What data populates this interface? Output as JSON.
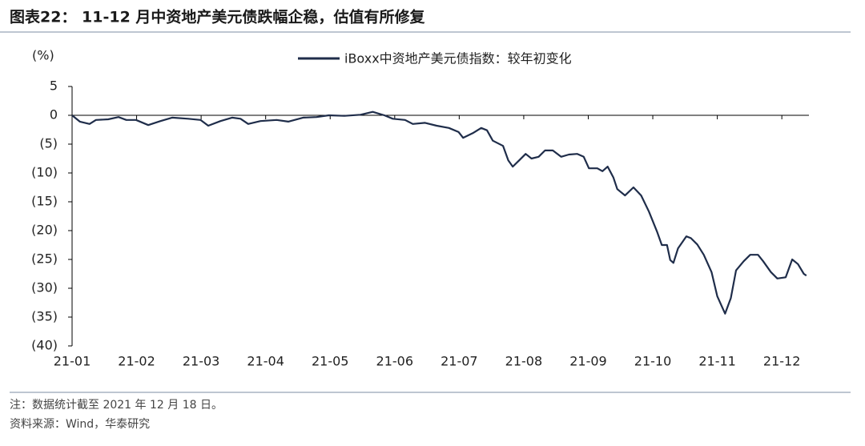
{
  "chart_data": {
    "type": "line",
    "title": "图表22：  11-12 月中资地产美元债跌幅企稳，估值有所修复",
    "y_label": "(%)",
    "note": "注：数据统计截至 2021 年 12 月 18 日。",
    "source": "资料来源：Wind，华泰研究",
    "x": [
      0,
      0.12,
      0.27,
      0.37,
      0.56,
      0.72,
      0.84,
      0.99,
      1.18,
      1.37,
      1.55,
      1.8,
      1.99,
      2.11,
      2.3,
      2.48,
      2.61,
      2.73,
      2.92,
      3.17,
      3.35,
      3.58,
      3.79,
      3.98,
      4.22,
      4.47,
      4.66,
      4.84,
      4.97,
      5.16,
      5.28,
      5.47,
      5.65,
      5.84,
      5.99,
      6.06,
      6.21,
      6.34,
      6.43,
      6.52,
      6.68,
      6.76,
      6.83,
      6.93,
      7.03,
      7.12,
      7.23,
      7.33,
      7.45,
      7.58,
      7.7,
      7.83,
      7.93,
      8.01,
      8.14,
      8.22,
      8.3,
      8.39,
      8.45,
      8.57,
      8.7,
      8.82,
      8.94,
      9.07,
      9.14,
      9.22,
      9.27,
      9.32,
      9.39,
      9.52,
      9.59,
      9.69,
      9.79,
      9.91,
      10.0,
      10.12,
      10.21,
      10.29,
      10.41,
      10.51,
      10.63,
      10.71,
      10.83,
      10.93,
      11.06,
      11.16,
      11.25,
      11.34,
      11.38
    ],
    "series": [
      {
        "name": "iBoxx中资地产美元债指数：较年初变化",
        "color": "#1f2d4a",
        "values": [
          0,
          -1.1,
          -1.5,
          -0.8,
          -0.7,
          -0.3,
          -0.8,
          -0.8,
          -1.7,
          -1.0,
          -0.4,
          -0.6,
          -0.8,
          -1.8,
          -1.0,
          -0.4,
          -0.6,
          -1.5,
          -1.0,
          -0.8,
          -1.1,
          -0.4,
          -0.3,
          0,
          -0.1,
          0.1,
          0.6,
          0,
          -0.6,
          -0.8,
          -1.5,
          -1.3,
          -1.8,
          -2.2,
          -2.9,
          -3.9,
          -3.1,
          -2.2,
          -2.6,
          -4.4,
          -5.3,
          -7.8,
          -8.9,
          -7.8,
          -6.7,
          -7.5,
          -7.2,
          -6.1,
          -6.1,
          -7.2,
          -6.8,
          -6.7,
          -7.2,
          -9.2,
          -9.2,
          -9.7,
          -8.9,
          -10.8,
          -12.8,
          -13.9,
          -12.5,
          -13.9,
          -16.7,
          -20.3,
          -22.5,
          -22.5,
          -25.1,
          -25.6,
          -23.1,
          -21.0,
          -21.3,
          -22.4,
          -24.2,
          -27.2,
          -31.4,
          -34.4,
          -31.7,
          -26.9,
          -25.3,
          -24.2,
          -24.2,
          -25.3,
          -27.2,
          -28.3,
          -28.1,
          -25.0,
          -25.8,
          -27.5,
          -27.8
        ]
      }
    ],
    "xlim": [
      0,
      11.42
    ],
    "xticks": [
      {
        "value": 0,
        "label": "21-01"
      },
      {
        "value": 1,
        "label": "21-02"
      },
      {
        "value": 2,
        "label": "21-03"
      },
      {
        "value": 3,
        "label": "21-04"
      },
      {
        "value": 4,
        "label": "21-05"
      },
      {
        "value": 5,
        "label": "21-06"
      },
      {
        "value": 6,
        "label": "21-07"
      },
      {
        "value": 7,
        "label": "21-08"
      },
      {
        "value": 8,
        "label": "21-09"
      },
      {
        "value": 9,
        "label": "21-10"
      },
      {
        "value": 10,
        "label": "21-11"
      },
      {
        "value": 11,
        "label": "21-12"
      }
    ],
    "ylim": [
      -40,
      5
    ],
    "yticks": [
      5,
      0,
      {
        "value": -5,
        "label": "(5)"
      },
      {
        "value": -10,
        "label": "(10)"
      },
      {
        "value": -15,
        "label": "(15)"
      },
      {
        "value": -20,
        "label": "(20)"
      },
      {
        "value": -25,
        "label": "(25)"
      },
      {
        "value": -30,
        "label": "(30)"
      },
      {
        "value": -35,
        "label": "(35)"
      },
      {
        "value": -40,
        "label": "(40)"
      }
    ],
    "legend": "top"
  }
}
